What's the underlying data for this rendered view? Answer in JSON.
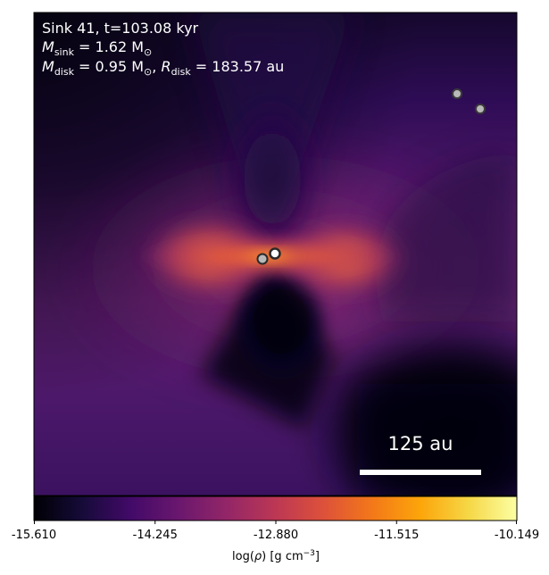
{
  "title": {
    "line1": "Sink 41, t=103.08 kyr",
    "line2_symbol": "M",
    "line2_sub": "sink",
    "line2_value": " = 1.62 M",
    "line2_unit_sub": "⊙",
    "line3_symbol": "M",
    "line3_sub": "disk",
    "line3_value": " = 0.95 M",
    "line3_unit_sub": "⊙",
    "line3_sep": ", ",
    "line3_r_symbol": "R",
    "line3_r_sub": "disk",
    "line3_r_value": " = 183.57 au"
  },
  "scalebar": {
    "label": "125 au"
  },
  "colorbar": {
    "colormap": "inferno",
    "ticks": [
      "-15.610",
      "-14.245",
      "-12.880",
      "-11.515",
      "-10.149"
    ],
    "label_prefix": "log(",
    "label_rho": "ρ",
    "label_mid": ") [g cm",
    "label_exp": "−3",
    "label_suffix": "]"
  },
  "sinks": [
    {
      "name": "central-sink-a"
    },
    {
      "name": "central-sink-b"
    },
    {
      "name": "companion-sink-a"
    },
    {
      "name": "companion-sink-b"
    }
  ],
  "colors": {
    "background_dark": "#0a0617",
    "disk_hot": "#e65d2f",
    "envelope": "#5d1f6e"
  }
}
